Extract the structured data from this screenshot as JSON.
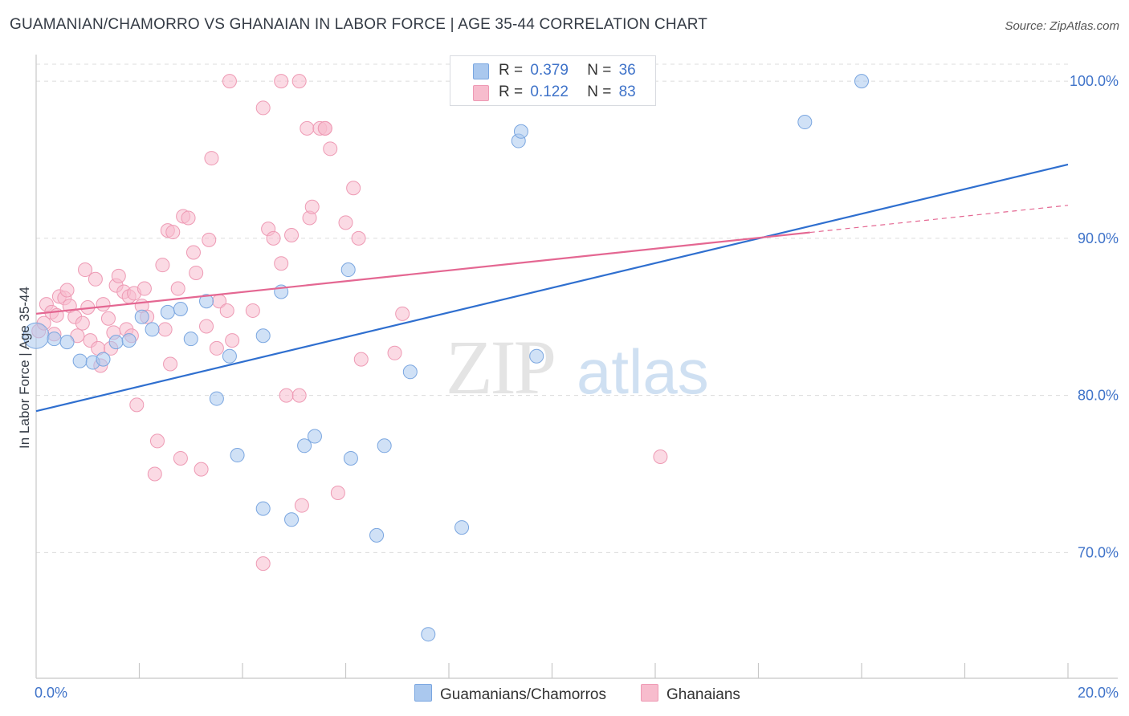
{
  "title": "GUAMANIAN/CHAMORRO VS GHANAIAN IN LABOR FORCE | AGE 35-44 CORRELATION CHART",
  "source": "Source: ZipAtlas.com",
  "watermark": {
    "zip": "ZIP",
    "atlas": "atlas"
  },
  "colors": {
    "blue_fill": "#aac8ee",
    "blue_stroke": "#7aa6e0",
    "blue_line": "#2f6fcf",
    "pink_fill": "#f7bccd",
    "pink_stroke": "#ee9ab4",
    "pink_line": "#e46792",
    "tick_text": "#3f73c9",
    "grid": "#dcdcdc"
  },
  "legend": {
    "rows": [
      {
        "r_label": "R =",
        "r_value": "0.379",
        "n_label": "N =",
        "n_value": "36"
      },
      {
        "r_label": "R =",
        "r_value": "0.122",
        "n_label": "N =",
        "n_value": "83"
      }
    ]
  },
  "bottom_legend": {
    "blue": "Guamanians/Chamorros",
    "pink": "Ghanaians"
  },
  "chart_data": {
    "type": "scatter",
    "title": "GUAMANIAN/CHAMORRO VS GHANAIAN IN LABOR FORCE | AGE 35-44 CORRELATION CHART",
    "xlabel": "",
    "ylabel": "In Labor Force | Age 35-44",
    "xlim": [
      0,
      20
    ],
    "ylim": [
      62,
      102
    ],
    "x_tick_labels": [
      "0.0%",
      "20.0%"
    ],
    "y_ticks": [
      70,
      80,
      90,
      100
    ],
    "y_tick_labels": [
      "70.0%",
      "80.0%",
      "90.0%",
      "100.0%"
    ],
    "grid": "horizontal dashed",
    "series": [
      {
        "name": "Guamanians/Chamorros",
        "color": "blue",
        "R": 0.379,
        "N": 36,
        "trend": {
          "x0": 0,
          "y0": 79.0,
          "x1": 20,
          "y1": 94.7,
          "dash_from_x": null
        },
        "points": [
          [
            0.0,
            83.8
          ],
          [
            0.35,
            83.6
          ],
          [
            0.6,
            83.4
          ],
          [
            0.85,
            82.2
          ],
          [
            1.1,
            82.1
          ],
          [
            1.3,
            82.3
          ],
          [
            1.55,
            83.4
          ],
          [
            1.8,
            83.5
          ],
          [
            2.05,
            85.0
          ],
          [
            2.25,
            84.2
          ],
          [
            2.55,
            85.3
          ],
          [
            2.8,
            85.5
          ],
          [
            3.0,
            83.6
          ],
          [
            3.3,
            86.0
          ],
          [
            3.5,
            79.8
          ],
          [
            3.75,
            82.5
          ],
          [
            3.9,
            76.2
          ],
          [
            4.4,
            72.8
          ],
          [
            4.4,
            83.8
          ],
          [
            4.75,
            86.6
          ],
          [
            4.95,
            72.1
          ],
          [
            5.2,
            76.8
          ],
          [
            5.4,
            77.4
          ],
          [
            6.1,
            76.0
          ],
          [
            6.05,
            88.0
          ],
          [
            6.6,
            71.1
          ],
          [
            6.75,
            76.8
          ],
          [
            7.25,
            81.5
          ],
          [
            7.6,
            64.8
          ],
          [
            8.25,
            71.6
          ],
          [
            9.35,
            96.2
          ],
          [
            9.4,
            96.8
          ],
          [
            9.7,
            82.5
          ],
          [
            11.3,
            100.0
          ],
          [
            14.9,
            97.4
          ],
          [
            16.0,
            100.0
          ]
        ]
      },
      {
        "name": "Ghanaians",
        "color": "pink",
        "R": 0.122,
        "N": 83,
        "trend": {
          "x0": 0,
          "y0": 85.2,
          "x1": 20,
          "y1": 92.1,
          "dash_from_x": 15.0
        },
        "points": [
          [
            0.05,
            84.1
          ],
          [
            0.15,
            84.6
          ],
          [
            0.2,
            85.8
          ],
          [
            0.3,
            85.3
          ],
          [
            0.35,
            83.9
          ],
          [
            0.4,
            85.1
          ],
          [
            0.45,
            86.3
          ],
          [
            0.55,
            86.2
          ],
          [
            0.6,
            86.7
          ],
          [
            0.65,
            85.7
          ],
          [
            0.75,
            85.0
          ],
          [
            0.8,
            83.8
          ],
          [
            0.9,
            84.6
          ],
          [
            0.95,
            88.0
          ],
          [
            1.0,
            85.6
          ],
          [
            1.05,
            83.5
          ],
          [
            1.15,
            87.4
          ],
          [
            1.2,
            83.0
          ],
          [
            1.25,
            81.9
          ],
          [
            1.3,
            85.8
          ],
          [
            1.4,
            84.9
          ],
          [
            1.45,
            83.0
          ],
          [
            1.5,
            84.0
          ],
          [
            1.55,
            87.0
          ],
          [
            1.6,
            87.6
          ],
          [
            1.7,
            86.6
          ],
          [
            1.75,
            84.2
          ],
          [
            1.8,
            86.3
          ],
          [
            1.85,
            83.8
          ],
          [
            1.9,
            86.5
          ],
          [
            1.95,
            79.4
          ],
          [
            2.05,
            85.7
          ],
          [
            2.1,
            86.8
          ],
          [
            2.15,
            85.0
          ],
          [
            2.3,
            75.0
          ],
          [
            2.35,
            77.1
          ],
          [
            2.45,
            88.3
          ],
          [
            2.5,
            84.2
          ],
          [
            2.55,
            90.5
          ],
          [
            2.6,
            82.0
          ],
          [
            2.65,
            90.4
          ],
          [
            2.75,
            86.8
          ],
          [
            2.8,
            76.0
          ],
          [
            2.85,
            91.4
          ],
          [
            2.95,
            91.3
          ],
          [
            3.05,
            89.1
          ],
          [
            3.1,
            87.8
          ],
          [
            3.2,
            75.3
          ],
          [
            3.3,
            84.4
          ],
          [
            3.35,
            89.9
          ],
          [
            3.4,
            95.1
          ],
          [
            3.5,
            83.0
          ],
          [
            3.55,
            86.0
          ],
          [
            3.7,
            85.4
          ],
          [
            3.8,
            83.5
          ],
          [
            3.75,
            100.0
          ],
          [
            4.2,
            85.4
          ],
          [
            4.4,
            98.3
          ],
          [
            4.4,
            69.3
          ],
          [
            4.5,
            90.6
          ],
          [
            4.6,
            90.0
          ],
          [
            4.75,
            88.4
          ],
          [
            4.85,
            80.0
          ],
          [
            4.95,
            90.2
          ],
          [
            5.1,
            80.0
          ],
          [
            5.15,
            73.0
          ],
          [
            5.25,
            97.0
          ],
          [
            5.3,
            91.3
          ],
          [
            5.35,
            92.0
          ],
          [
            5.5,
            97.0
          ],
          [
            5.6,
            97.0
          ],
          [
            5.7,
            95.7
          ],
          [
            5.85,
            73.8
          ],
          [
            6.0,
            91.0
          ],
          [
            6.15,
            93.2
          ],
          [
            6.25,
            90.0
          ],
          [
            6.3,
            82.3
          ],
          [
            6.95,
            82.7
          ],
          [
            7.1,
            85.2
          ],
          [
            4.75,
            100.0
          ],
          [
            5.1,
            100.0
          ],
          [
            5.6,
            97.0
          ],
          [
            12.1,
            76.1
          ]
        ]
      }
    ]
  }
}
